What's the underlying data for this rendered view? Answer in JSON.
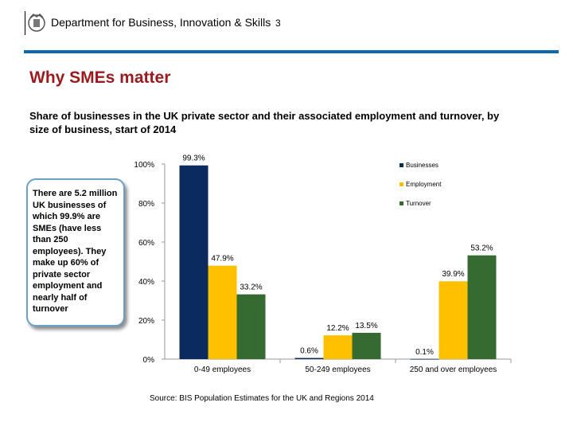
{
  "header": {
    "organisation": "Department for Business, Innovation & Skills",
    "page_number": "3",
    "rule_color": "#0e68b0"
  },
  "slide": {
    "title": "Why SMEs matter",
    "subtitle": "Share of businesses in the UK private sector and their associated employment and turnover, by size of business, start of 2014",
    "callout": "There are 5.2 million UK businesses of which 99.9% are SMEs (have less than 250 employees). They make up 60% of private sector employment and nearly half of turnover",
    "source": "Source: BIS Population Estimates for the UK and Regions 2014",
    "title_color": "#9c1a1e"
  },
  "chart_data": {
    "type": "bar",
    "title": "",
    "xlabel": "",
    "ylabel": "",
    "categories": [
      "0-49 employees",
      "50-249 employees",
      "250 and over employees"
    ],
    "series": [
      {
        "name": "Businesses",
        "color": "#0b2a5e",
        "values": [
          99.3,
          0.6,
          0.1
        ],
        "labels": [
          "99.3%",
          "0.6%",
          "0.1%"
        ]
      },
      {
        "name": "Employment",
        "color": "#ffc000",
        "values": [
          47.9,
          12.2,
          39.9
        ],
        "labels": [
          "47.9%",
          "12.2%",
          "39.9%"
        ]
      },
      {
        "name": "Turnover",
        "color": "#356b31",
        "values": [
          33.2,
          13.5,
          53.2
        ],
        "labels": [
          "33.2%",
          "13.5%",
          "53.2%"
        ]
      }
    ],
    "ylim": [
      0,
      100
    ],
    "yticks": [
      0,
      20,
      40,
      60,
      80,
      100
    ],
    "ytick_labels": [
      "0%",
      "20%",
      "40%",
      "60%",
      "80%",
      "100%"
    ],
    "grid": false,
    "legend_position": "top-right"
  }
}
